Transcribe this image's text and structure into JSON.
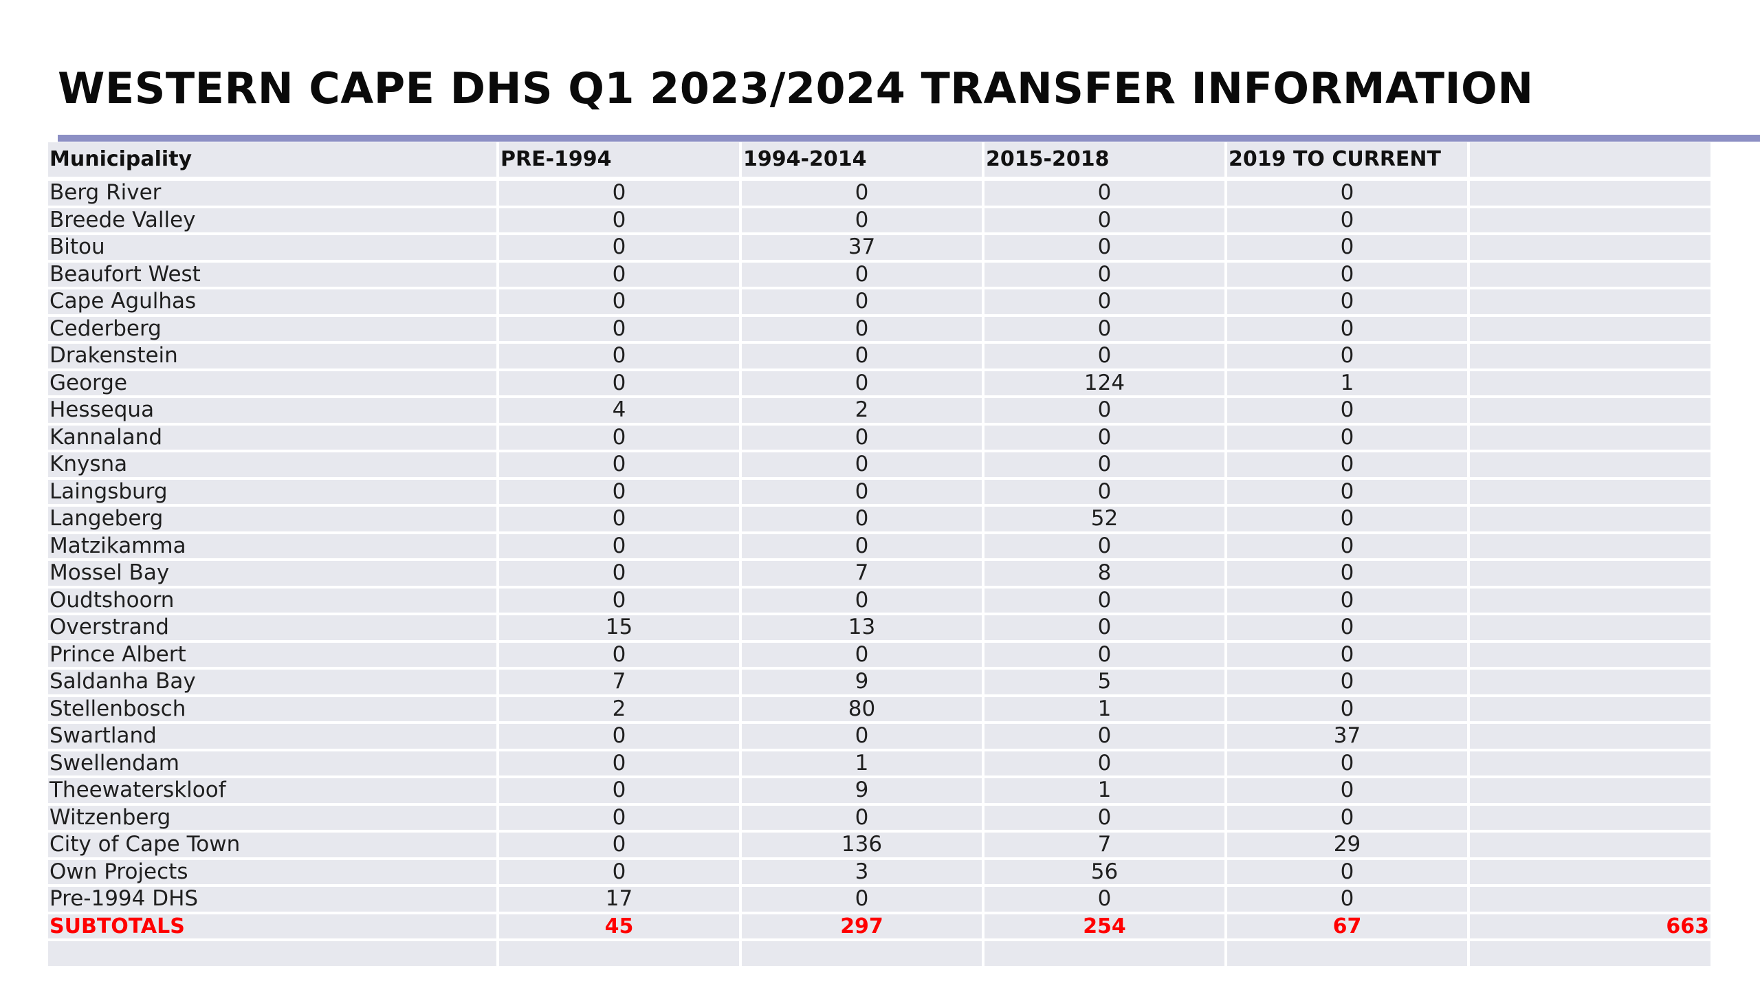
{
  "slide": {
    "title": "WESTERN CAPE DHS Q1 2023/2024 TRANSFER INFORMATION",
    "accent_color": "#8c8fc4",
    "cell_fill_color": "#e7e8ee",
    "subtotal_color": "#ff0000"
  },
  "table": {
    "headers": {
      "municipality": "Municipality",
      "col1": "PRE-1994",
      "col2": "1994-2014",
      "col3": "2015-2018",
      "col4": "2019 TO CURRENT",
      "col5": ""
    },
    "rows": [
      {
        "name": "Berg River",
        "v1": "0",
        "v2": "0",
        "v3": "0",
        "v4": "0"
      },
      {
        "name": "Breede Valley",
        "v1": "0",
        "v2": "0",
        "v3": "0",
        "v4": "0"
      },
      {
        "name": "Bitou",
        "v1": "0",
        "v2": "37",
        "v3": "0",
        "v4": "0"
      },
      {
        "name": "Beaufort West",
        "v1": "0",
        "v2": "0",
        "v3": "0",
        "v4": "0"
      },
      {
        "name": "Cape Agulhas",
        "v1": "0",
        "v2": "0",
        "v3": "0",
        "v4": "0"
      },
      {
        "name": "Cederberg",
        "v1": "0",
        "v2": "0",
        "v3": "0",
        "v4": "0"
      },
      {
        "name": "Drakenstein",
        "v1": "0",
        "v2": "0",
        "v3": "0",
        "v4": "0"
      },
      {
        "name": "George",
        "v1": "0",
        "v2": "0",
        "v3": "124",
        "v4": "1"
      },
      {
        "name": "Hessequa",
        "v1": "4",
        "v2": "2",
        "v3": "0",
        "v4": "0"
      },
      {
        "name": "Kannaland",
        "v1": "0",
        "v2": "0",
        "v3": "0",
        "v4": "0"
      },
      {
        "name": "Knysna",
        "v1": "0",
        "v2": "0",
        "v3": "0",
        "v4": "0"
      },
      {
        "name": "Laingsburg",
        "v1": "0",
        "v2": "0",
        "v3": "0",
        "v4": "0"
      },
      {
        "name": "Langeberg",
        "v1": "0",
        "v2": "0",
        "v3": "52",
        "v4": "0"
      },
      {
        "name": "Matzikamma",
        "v1": "0",
        "v2": "0",
        "v3": "0",
        "v4": "0"
      },
      {
        "name": "Mossel Bay",
        "v1": "0",
        "v2": "7",
        "v3": "8",
        "v4": "0"
      },
      {
        "name": "Oudtshoorn",
        "v1": "0",
        "v2": "0",
        "v3": "0",
        "v4": "0"
      },
      {
        "name": "Overstrand",
        "v1": "15",
        "v2": "13",
        "v3": "0",
        "v4": "0"
      },
      {
        "name": "Prince Albert",
        "v1": "0",
        "v2": "0",
        "v3": "0",
        "v4": "0"
      },
      {
        "name": "Saldanha Bay",
        "v1": "7",
        "v2": "9",
        "v3": "5",
        "v4": "0"
      },
      {
        "name": "Stellenbosch",
        "v1": "2",
        "v2": "80",
        "v3": "1",
        "v4": "0"
      },
      {
        "name": "Swartland",
        "v1": "0",
        "v2": "0",
        "v3": "0",
        "v4": "37"
      },
      {
        "name": "Swellendam",
        "v1": "0",
        "v2": "1",
        "v3": "0",
        "v4": "0"
      },
      {
        "name": "Theewaterskloof",
        "v1": "0",
        "v2": "9",
        "v3": "1",
        "v4": "0"
      },
      {
        "name": "Witzenberg",
        "v1": "0",
        "v2": "0",
        "v3": "0",
        "v4": "0"
      },
      {
        "name": "City of Cape Town",
        "v1": "0",
        "v2": "136",
        "v3": "7",
        "v4": "29"
      },
      {
        "name": "Own Projects",
        "v1": "0",
        "v2": "3",
        "v3": "56",
        "v4": "0"
      },
      {
        "name": "Pre-1994 DHS",
        "v1": "17",
        "v2": "0",
        "v3": "0",
        "v4": "0"
      }
    ],
    "subtotals": {
      "label": "SUBTOTALS",
      "v1": "45",
      "v2": "297",
      "v3": "254",
      "v4": "67",
      "total": "663"
    }
  }
}
